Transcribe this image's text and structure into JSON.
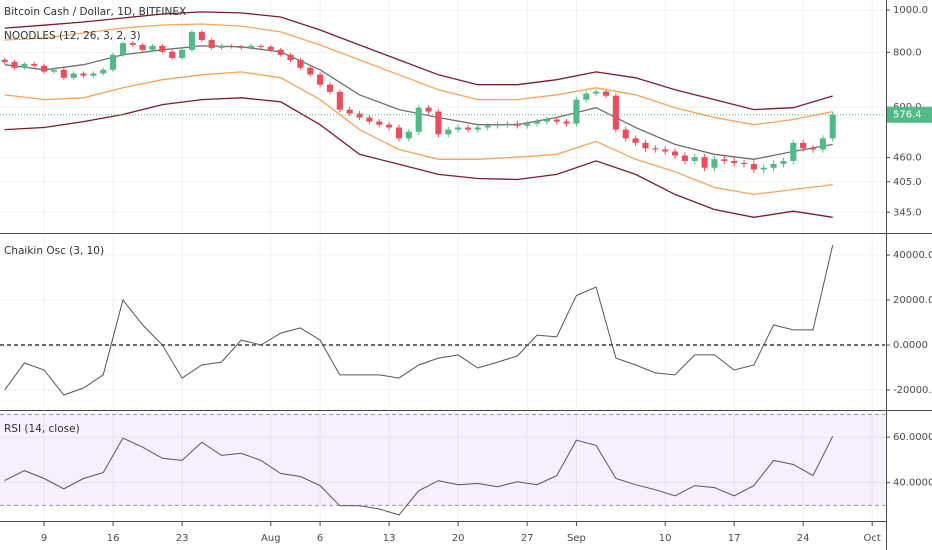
{
  "chart_data": [
    {
      "type": "candlestick",
      "title": "Bitcoin Cash / Dollar, 1D, BITFINEX",
      "log_scale": true,
      "xlim": [
        -0.47,
        89.3
      ],
      "ylim": [
        311,
        1054
      ],
      "yticks": [
        {
          "value": 1000,
          "label": "1000.0"
        },
        {
          "value": 800,
          "label": "800.0"
        },
        {
          "value": 600,
          "label": "600.0"
        },
        {
          "value": 460,
          "label": "460.0"
        },
        {
          "value": 405,
          "label": "405.0"
        },
        {
          "value": 345,
          "label": "345.0"
        }
      ],
      "grid": true,
      "up_color": "#53b987",
      "down_color": "#eb4d5c",
      "open": [
        769,
        761,
        738,
        753,
        746,
        723,
        730,
        700,
        716,
        708,
        716,
        730,
        790,
        840,
        832,
        811,
        828,
        803,
        777,
        811,
        891,
        854,
        819,
        828,
        824,
        819,
        828,
        824,
        811,
        790,
        769,
        738,
        712,
        675,
        650,
        592,
        580,
        568,
        556,
        547,
        539,
        509,
        527,
        598,
        586,
        520,
        533,
        539,
        533,
        539,
        544,
        547,
        550,
        544,
        550,
        556,
        562,
        556,
        550,
        624,
        644,
        651,
        637,
        533,
        509,
        497,
        483,
        480,
        475,
        465,
        452,
        461,
        436,
        456,
        452,
        447,
        445,
        432,
        436,
        445,
        452,
        497,
        483,
        480,
        509
      ],
      "high": [
        777,
        769,
        761,
        761,
        754,
        738,
        738,
        724,
        724,
        724,
        738,
        798,
        848,
        848,
        840,
        836,
        836,
        811,
        819,
        899,
        899,
        862,
        836,
        836,
        832,
        836,
        836,
        832,
        819,
        798,
        777,
        746,
        720,
        683,
        658,
        600,
        588,
        576,
        564,
        555,
        547,
        535,
        606,
        606,
        594,
        541,
        547,
        547,
        547,
        552,
        555,
        558,
        558,
        558,
        564,
        570,
        570,
        564,
        632,
        652,
        659,
        659,
        645,
        541,
        517,
        505,
        491,
        488,
        483,
        473,
        469,
        469,
        464,
        464,
        460,
        455,
        453,
        444,
        453,
        460,
        505,
        505,
        491,
        517,
        585
      ],
      "low": [
        753,
        730,
        730,
        738,
        715,
        715,
        692,
        692,
        700,
        700,
        708,
        722,
        782,
        824,
        803,
        803,
        795,
        769,
        769,
        803,
        846,
        811,
        811,
        816,
        811,
        811,
        816,
        803,
        782,
        761,
        730,
        704,
        667,
        642,
        584,
        572,
        560,
        548,
        539,
        531,
        501,
        501,
        519,
        578,
        512,
        512,
        525,
        525,
        525,
        531,
        536,
        539,
        536,
        536,
        542,
        548,
        548,
        542,
        542,
        616,
        636,
        629,
        525,
        501,
        489,
        475,
        472,
        467,
        457,
        444,
        444,
        428,
        428,
        444,
        439,
        437,
        424,
        424,
        428,
        437,
        444,
        475,
        472,
        472,
        501
      ],
      "close": [
        761,
        738,
        753,
        746,
        723,
        730,
        700,
        716,
        708,
        716,
        730,
        790,
        840,
        832,
        811,
        828,
        803,
        777,
        811,
        891,
        854,
        819,
        828,
        824,
        819,
        828,
        824,
        811,
        790,
        769,
        738,
        712,
        675,
        650,
        592,
        580,
        568,
        556,
        547,
        539,
        509,
        527,
        598,
        586,
        520,
        533,
        539,
        533,
        539,
        544,
        547,
        550,
        544,
        550,
        556,
        562,
        556,
        550,
        624,
        644,
        651,
        637,
        533,
        509,
        497,
        483,
        480,
        475,
        465,
        452,
        461,
        436,
        456,
        452,
        447,
        445,
        432,
        436,
        445,
        452,
        497,
        483,
        480,
        509,
        576.4
      ],
      "bands": {
        "name": "NOODLES (12, 26, 3, 2, 3)",
        "x": [
          0,
          4,
          8,
          12,
          16,
          20,
          24,
          28,
          32,
          36,
          40,
          44,
          48,
          52,
          56,
          60,
          64,
          68,
          72,
          76,
          80,
          84
        ],
        "lines": [
          {
            "color": "#7b1c2c",
            "values": [
              909,
              923,
              939,
              959,
              979,
              990,
              985,
              964,
              900,
              832,
              769,
              711,
              675,
              675,
              693,
              722,
              700,
              657,
              624,
              592,
              598,
              636
            ]
          },
          {
            "color": "#f7a35c",
            "values": [
              854,
              863,
              886,
              909,
              924,
              929,
              919,
              891,
              832,
              769,
              711,
              657,
              624,
              624,
              640,
              664,
              640,
              598,
              568,
              547,
              562,
              586
            ]
          },
          {
            "color": "#707070",
            "values": [
              750,
              730,
              750,
              790,
              811,
              828,
              824,
              802,
              730,
              640,
              592,
              568,
              547,
              547,
              568,
              598,
              539,
              493,
              468,
              456,
              475,
              493
            ]
          },
          {
            "color": "#f7a35c",
            "values": [
              640,
              624,
              630,
              664,
              693,
              711,
              722,
              700,
              624,
              533,
              480,
              456,
              456,
              461,
              468,
              501,
              456,
              427,
              393,
              379,
              389,
              399
            ]
          },
          {
            "color": "#7b1c2c",
            "values": [
              533,
              539,
              556,
              577,
              608,
              624,
              630,
              617,
              547,
              468,
              444,
              421,
              412,
              410,
              421,
              452,
              421,
              379,
              350,
              336,
              347,
              336
            ]
          }
        ]
      }
    },
    {
      "type": "line",
      "title": "Chaikin Osc (3, 10)",
      "color": "#555555",
      "zero_line": true,
      "grid": true,
      "xlim": [
        -0.47,
        89.3
      ],
      "ylim": [
        -28000,
        48900
      ],
      "yticks": [
        {
          "value": 40000,
          "label": "40000.0000"
        },
        {
          "value": 20000,
          "label": "20000.0000"
        },
        {
          "value": 0,
          "label": "0.0000"
        },
        {
          "value": -20000,
          "label": "-20000.0000"
        }
      ],
      "x": [
        0,
        2,
        4,
        6,
        8,
        10,
        12,
        14,
        16,
        18,
        20,
        22,
        24,
        26,
        28,
        30,
        32,
        34,
        36,
        38,
        40,
        42,
        44,
        46,
        48,
        50,
        52,
        54,
        56,
        58,
        60,
        62,
        64,
        66,
        68,
        70,
        72,
        74,
        76,
        78,
        80,
        82,
        84
      ],
      "values": [
        -20000,
        -8000,
        -11100,
        -22200,
        -19100,
        -13300,
        20000,
        8900,
        0,
        -14700,
        -8900,
        -7600,
        2200,
        0,
        5300,
        7600,
        2200,
        -13300,
        -13300,
        -13300,
        -14700,
        -8900,
        -5800,
        -4400,
        -10200,
        -7600,
        -4900,
        4400,
        3600,
        22000,
        25800,
        -5800,
        -8900,
        -12400,
        -13300,
        -4400,
        -4400,
        -11100,
        -8900,
        8900,
        6700,
        6700,
        44400
      ]
    },
    {
      "type": "line",
      "title": "RSI (14, close)",
      "color": "#555555",
      "grid": true,
      "bands": [
        30,
        70
      ],
      "band_color": "#9966ff",
      "xlim": [
        -0.47,
        89.3
      ],
      "ylim": [
        23.1,
        71.1
      ],
      "yticks": [
        {
          "value": 60,
          "label": "60.0000"
        },
        {
          "value": 40,
          "label": "40.0000"
        }
      ],
      "xticks": [
        {
          "value": 4,
          "label": "9"
        },
        {
          "value": 11,
          "label": "16"
        },
        {
          "value": 18,
          "label": "23"
        },
        {
          "value": 27,
          "label": "Aug"
        },
        {
          "value": 32,
          "label": "6"
        },
        {
          "value": 39,
          "label": "13"
        },
        {
          "value": 46,
          "label": "20"
        },
        {
          "value": 53,
          "label": "27"
        },
        {
          "value": 58,
          "label": "Sep"
        },
        {
          "value": 67,
          "label": "10"
        },
        {
          "value": 74,
          "label": "17"
        },
        {
          "value": 81,
          "label": "24"
        },
        {
          "value": 88,
          "label": "Oct"
        }
      ],
      "x": [
        0,
        2,
        4,
        6,
        8,
        10,
        12,
        14,
        16,
        18,
        20,
        22,
        24,
        26,
        28,
        30,
        32,
        34,
        36,
        38,
        40,
        42,
        44,
        46,
        48,
        50,
        52,
        54,
        56,
        58,
        60,
        62,
        64,
        66,
        68,
        70,
        72,
        74,
        76,
        78,
        80,
        82,
        84
      ],
      "values": [
        40.9,
        45.3,
        41.8,
        37.3,
        41.8,
        44.4,
        59.6,
        55.6,
        50.7,
        49.8,
        57.8,
        52.0,
        52.9,
        49.8,
        44.0,
        42.7,
        38.7,
        29.8,
        29.8,
        28.4,
        25.8,
        36.4,
        40.9,
        39.1,
        39.6,
        38.2,
        40.4,
        39.1,
        43.1,
        58.7,
        56.4,
        41.8,
        39.1,
        36.9,
        34.2,
        38.7,
        37.8,
        34.2,
        38.7,
        49.8,
        48.0,
        43.1,
        60.4
      ]
    }
  ]
}
